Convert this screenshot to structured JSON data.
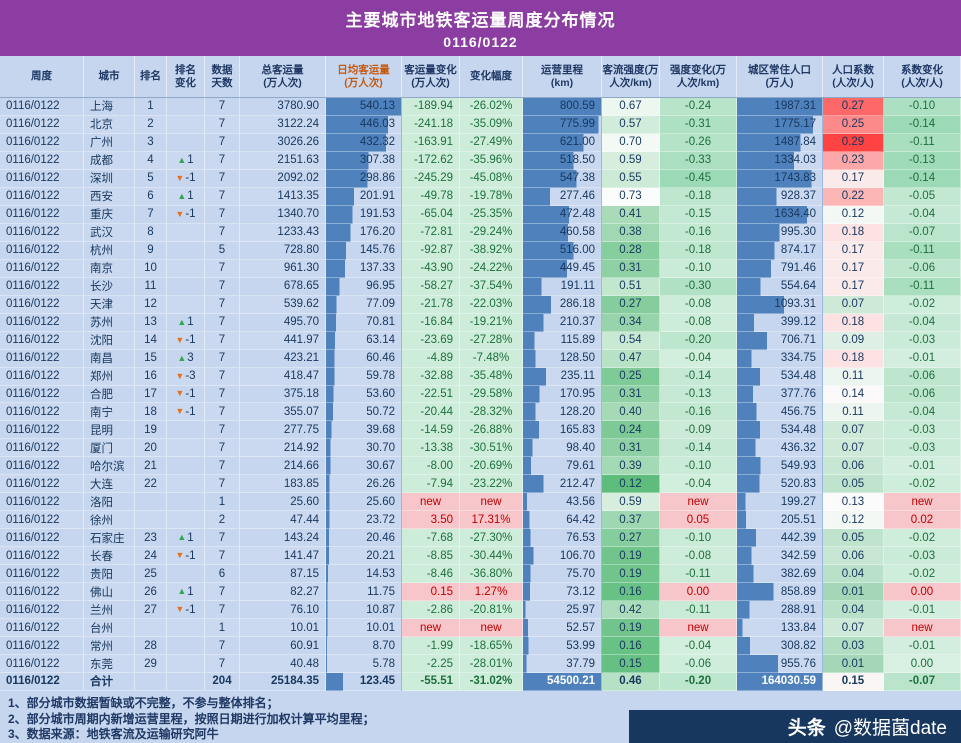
{
  "title": "主要城市地铁客运量周度分布情况",
  "subtitle": "0116/0122",
  "notes": [
    "1、部分城市数据暂缺或不完整，不参与整体排名；",
    "2、部分城市周期内新增运营里程，按照日期进行加权计算平均里程；",
    "3、数据来源：地铁客流及运输研究阿牛"
  ],
  "watermark": {
    "brand": "头条",
    "handle": "@数据菌date"
  },
  "colors": {
    "title_bg": "#8B3DA1",
    "page_bg": "#C5D6EE",
    "header_text": "#1F3864",
    "header_accent": "#C55A11",
    "body_text": "#17375E",
    "bar_blue": "#4F81BD",
    "green_bg": "#CDEDDA",
    "green_text": "#1D6F3C",
    "pink_bg": "#F6C6CA",
    "pink_text": "#C00000",
    "intensity_green": "#5EBD7D",
    "coef_red": "#FF4343",
    "coef_green": "#93D1AC",
    "up_arrow": "#2EA84F",
    "down_arrow": "#E8701A",
    "watermark_bg": "#17375E"
  },
  "chart_data": {
    "type": "table",
    "title": "主要城市地铁客运量周度分布情况",
    "period": "0116/0122",
    "columns": [
      "周度",
      "城市",
      "排名",
      "排名变化",
      "数据天数",
      "总客运量(万人次)",
      "日均客运量(万人次)",
      "客运量变化(万人次)",
      "变化幅度",
      "运营里程(km)",
      "客流强度(万人次/km)",
      "强度变化(万人次/km)",
      "城区常住人口(万人)",
      "人口系数(人次/人)",
      "系数变化(人次/人)"
    ],
    "header_lines": [
      [
        "周度"
      ],
      [
        "城市"
      ],
      [
        "排名"
      ],
      [
        "排名",
        "变化"
      ],
      [
        "数据",
        "天数"
      ],
      [
        "总客运量",
        "(万人次)"
      ],
      [
        "日均客运量",
        "(万人次)"
      ],
      [
        "客运量变化",
        "(万人次)"
      ],
      [
        "变化幅度"
      ],
      [
        "运营里程",
        "(km)"
      ],
      [
        "客流强度(万",
        "人次/km)"
      ],
      [
        "强度变化(万",
        "人次/km)"
      ],
      [
        "城区常住人口",
        "(万人)"
      ],
      [
        "人口系数",
        "(人次/人)"
      ],
      [
        "系数变化",
        "(人次/人)"
      ]
    ],
    "scales": {
      "daily_avg_bar_max": 540.13,
      "mileage_bar_max": 800.59,
      "population_bar_max": 1987.31,
      "intensity_range": [
        0.12,
        0.73
      ],
      "coefficient_min": 0.01,
      "coefficient_mid": 0.13,
      "coefficient_max": 0.29
    },
    "rows": [
      {
        "city": "上海",
        "rank": "1",
        "rc": "",
        "days": "7",
        "total": "3780.90",
        "avg": "540.13",
        "dvol": "-189.94",
        "dpct": "-26.02%",
        "km": "800.59",
        "int": "0.67",
        "dint": "-0.24",
        "pop": "1987.31",
        "coef": "0.27",
        "dcoef": "-0.10"
      },
      {
        "city": "北京",
        "rank": "2",
        "rc": "",
        "days": "7",
        "total": "3122.24",
        "avg": "446.03",
        "dvol": "-241.18",
        "dpct": "-35.09%",
        "km": "775.99",
        "int": "0.57",
        "dint": "-0.31",
        "pop": "1775.17",
        "coef": "0.25",
        "dcoef": "-0.14"
      },
      {
        "city": "广州",
        "rank": "3",
        "rc": "",
        "days": "7",
        "total": "3026.26",
        "avg": "432.32",
        "dvol": "-163.91",
        "dpct": "-27.49%",
        "km": "621.00",
        "int": "0.70",
        "dint": "-0.26",
        "pop": "1487.84",
        "coef": "0.29",
        "dcoef": "-0.11"
      },
      {
        "city": "成都",
        "rank": "4",
        "rc": "▲1",
        "days": "7",
        "total": "2151.63",
        "avg": "307.38",
        "dvol": "-172.62",
        "dpct": "-35.96%",
        "km": "518.50",
        "int": "0.59",
        "dint": "-0.33",
        "pop": "1334.03",
        "coef": "0.23",
        "dcoef": "-0.13"
      },
      {
        "city": "深圳",
        "rank": "5",
        "rc": "▼-1",
        "days": "7",
        "total": "2092.02",
        "avg": "298.86",
        "dvol": "-245.29",
        "dpct": "-45.08%",
        "km": "547.38",
        "int": "0.55",
        "dint": "-0.45",
        "pop": "1743.83",
        "coef": "0.17",
        "dcoef": "-0.14"
      },
      {
        "city": "西安",
        "rank": "6",
        "rc": "▲1",
        "days": "7",
        "total": "1413.35",
        "avg": "201.91",
        "dvol": "-49.78",
        "dpct": "-19.78%",
        "km": "277.46",
        "int": "0.73",
        "dint": "-0.18",
        "pop": "928.37",
        "coef": "0.22",
        "dcoef": "-0.05"
      },
      {
        "city": "重庆",
        "rank": "7",
        "rc": "▼-1",
        "days": "7",
        "total": "1340.70",
        "avg": "191.53",
        "dvol": "-65.04",
        "dpct": "-25.35%",
        "km": "472.48",
        "int": "0.41",
        "dint": "-0.15",
        "pop": "1634.40",
        "coef": "0.12",
        "dcoef": "-0.04"
      },
      {
        "city": "武汉",
        "rank": "8",
        "rc": "",
        "days": "7",
        "total": "1233.43",
        "avg": "176.20",
        "dvol": "-72.81",
        "dpct": "-29.24%",
        "km": "460.58",
        "int": "0.38",
        "dint": "-0.16",
        "pop": "995.30",
        "coef": "0.18",
        "dcoef": "-0.07"
      },
      {
        "city": "杭州",
        "rank": "9",
        "rc": "",
        "days": "5",
        "total": "728.80",
        "avg": "145.76",
        "dvol": "-92.87",
        "dpct": "-38.92%",
        "km": "516.00",
        "int": "0.28",
        "dint": "-0.18",
        "pop": "874.17",
        "coef": "0.17",
        "dcoef": "-0.11"
      },
      {
        "city": "南京",
        "rank": "10",
        "rc": "",
        "days": "7",
        "total": "961.30",
        "avg": "137.33",
        "dvol": "-43.90",
        "dpct": "-24.22%",
        "km": "449.45",
        "int": "0.31",
        "dint": "-0.10",
        "pop": "791.46",
        "coef": "0.17",
        "dcoef": "-0.06"
      },
      {
        "city": "长沙",
        "rank": "11",
        "rc": "",
        "days": "7",
        "total": "678.65",
        "avg": "96.95",
        "dvol": "-58.27",
        "dpct": "-37.54%",
        "km": "191.11",
        "int": "0.51",
        "dint": "-0.30",
        "pop": "554.64",
        "coef": "0.17",
        "dcoef": "-0.11"
      },
      {
        "city": "天津",
        "rank": "12",
        "rc": "",
        "days": "7",
        "total": "539.62",
        "avg": "77.09",
        "dvol": "-21.78",
        "dpct": "-22.03%",
        "km": "286.18",
        "int": "0.27",
        "dint": "-0.08",
        "pop": "1093.31",
        "coef": "0.07",
        "dcoef": "-0.02"
      },
      {
        "city": "苏州",
        "rank": "13",
        "rc": "▲1",
        "days": "7",
        "total": "495.70",
        "avg": "70.81",
        "dvol": "-16.84",
        "dpct": "-19.21%",
        "km": "210.37",
        "int": "0.34",
        "dint": "-0.08",
        "pop": "399.12",
        "coef": "0.18",
        "dcoef": "-0.04"
      },
      {
        "city": "沈阳",
        "rank": "14",
        "rc": "▼-1",
        "days": "7",
        "total": "441.97",
        "avg": "63.14",
        "dvol": "-23.69",
        "dpct": "-27.28%",
        "km": "115.89",
        "int": "0.54",
        "dint": "-0.20",
        "pop": "706.71",
        "coef": "0.09",
        "dcoef": "-0.03"
      },
      {
        "city": "南昌",
        "rank": "15",
        "rc": "▲3",
        "days": "7",
        "total": "423.21",
        "avg": "60.46",
        "dvol": "-4.89",
        "dpct": "-7.48%",
        "km": "128.50",
        "int": "0.47",
        "dint": "-0.04",
        "pop": "334.75",
        "coef": "0.18",
        "dcoef": "-0.01"
      },
      {
        "city": "郑州",
        "rank": "16",
        "rc": "▼-3",
        "days": "7",
        "total": "418.47",
        "avg": "59.78",
        "dvol": "-32.88",
        "dpct": "-35.48%",
        "km": "235.11",
        "int": "0.25",
        "dint": "-0.14",
        "pop": "534.48",
        "coef": "0.11",
        "dcoef": "-0.06"
      },
      {
        "city": "合肥",
        "rank": "17",
        "rc": "▼-1",
        "days": "7",
        "total": "375.18",
        "avg": "53.60",
        "dvol": "-22.51",
        "dpct": "-29.58%",
        "km": "170.95",
        "int": "0.31",
        "dint": "-0.13",
        "pop": "377.76",
        "coef": "0.14",
        "dcoef": "-0.06"
      },
      {
        "city": "南宁",
        "rank": "18",
        "rc": "▼-1",
        "days": "7",
        "total": "355.07",
        "avg": "50.72",
        "dvol": "-20.44",
        "dpct": "-28.32%",
        "km": "128.20",
        "int": "0.40",
        "dint": "-0.16",
        "pop": "456.75",
        "coef": "0.11",
        "dcoef": "-0.04"
      },
      {
        "city": "昆明",
        "rank": "19",
        "rc": "",
        "days": "7",
        "total": "277.75",
        "avg": "39.68",
        "dvol": "-14.59",
        "dpct": "-26.88%",
        "km": "165.83",
        "int": "0.24",
        "dint": "-0.09",
        "pop": "534.48",
        "coef": "0.07",
        "dcoef": "-0.03"
      },
      {
        "city": "厦门",
        "rank": "20",
        "rc": "",
        "days": "7",
        "total": "214.92",
        "avg": "30.70",
        "dvol": "-13.38",
        "dpct": "-30.51%",
        "km": "98.40",
        "int": "0.31",
        "dint": "-0.14",
        "pop": "436.32",
        "coef": "0.07",
        "dcoef": "-0.03"
      },
      {
        "city": "哈尔滨",
        "rank": "21",
        "rc": "",
        "days": "7",
        "total": "214.66",
        "avg": "30.67",
        "dvol": "-8.00",
        "dpct": "-20.69%",
        "km": "79.61",
        "int": "0.39",
        "dint": "-0.10",
        "pop": "549.93",
        "coef": "0.06",
        "dcoef": "-0.01"
      },
      {
        "city": "大连",
        "rank": "22",
        "rc": "",
        "days": "7",
        "total": "183.85",
        "avg": "26.26",
        "dvol": "-7.94",
        "dpct": "-23.22%",
        "km": "212.47",
        "int": "0.12",
        "dint": "-0.04",
        "pop": "520.83",
        "coef": "0.05",
        "dcoef": "-0.02"
      },
      {
        "city": "洛阳",
        "rank": "",
        "rc": "",
        "days": "1",
        "total": "25.60",
        "avg": "25.60",
        "dvol": "new",
        "dpct": "new",
        "km": "43.56",
        "int": "0.59",
        "dint": "new",
        "pop": "199.27",
        "coef": "0.13",
        "dcoef": "new"
      },
      {
        "city": "徐州",
        "rank": "",
        "rc": "",
        "days": "2",
        "total": "47.44",
        "avg": "23.72",
        "dvol": "3.50",
        "dpct": "17.31%",
        "km": "64.42",
        "int": "0.37",
        "dint": "0.05",
        "pop": "205.51",
        "coef": "0.12",
        "dcoef": "0.02"
      },
      {
        "city": "石家庄",
        "rank": "23",
        "rc": "▲1",
        "days": "7",
        "total": "143.24",
        "avg": "20.46",
        "dvol": "-7.68",
        "dpct": "-27.30%",
        "km": "76.53",
        "int": "0.27",
        "dint": "-0.10",
        "pop": "442.39",
        "coef": "0.05",
        "dcoef": "-0.02"
      },
      {
        "city": "长春",
        "rank": "24",
        "rc": "▼-1",
        "days": "7",
        "total": "141.47",
        "avg": "20.21",
        "dvol": "-8.85",
        "dpct": "-30.44%",
        "km": "106.70",
        "int": "0.19",
        "dint": "-0.08",
        "pop": "342.59",
        "coef": "0.06",
        "dcoef": "-0.03"
      },
      {
        "city": "贵阳",
        "rank": "25",
        "rc": "",
        "days": "6",
        "total": "87.15",
        "avg": "14.53",
        "dvol": "-8.46",
        "dpct": "-36.80%",
        "km": "75.70",
        "int": "0.19",
        "dint": "-0.11",
        "pop": "382.69",
        "coef": "0.04",
        "dcoef": "-0.02"
      },
      {
        "city": "佛山",
        "rank": "26",
        "rc": "▲1",
        "days": "7",
        "total": "82.27",
        "avg": "11.75",
        "dvol": "0.15",
        "dpct": "1.27%",
        "km": "73.12",
        "int": "0.16",
        "dint": "0.00",
        "pop": "858.89",
        "coef": "0.01",
        "dcoef": "0.00",
        "pos": true
      },
      {
        "city": "兰州",
        "rank": "27",
        "rc": "▼-1",
        "days": "7",
        "total": "76.10",
        "avg": "10.87",
        "dvol": "-2.86",
        "dpct": "-20.81%",
        "km": "25.97",
        "int": "0.42",
        "dint": "-0.11",
        "pop": "288.91",
        "coef": "0.04",
        "dcoef": "-0.01"
      },
      {
        "city": "台州",
        "rank": "",
        "rc": "",
        "days": "1",
        "total": "10.01",
        "avg": "10.01",
        "dvol": "new",
        "dpct": "new",
        "km": "52.57",
        "int": "0.19",
        "dint": "new",
        "pop": "133.84",
        "coef": "0.07",
        "dcoef": "new"
      },
      {
        "city": "常州",
        "rank": "28",
        "rc": "",
        "days": "7",
        "total": "60.91",
        "avg": "8.70",
        "dvol": "-1.99",
        "dpct": "-18.65%",
        "km": "53.99",
        "int": "0.16",
        "dint": "-0.04",
        "pop": "308.82",
        "coef": "0.03",
        "dcoef": "-0.01"
      },
      {
        "city": "东莞",
        "rank": "29",
        "rc": "",
        "days": "7",
        "total": "40.48",
        "avg": "5.78",
        "dvol": "-2.25",
        "dpct": "-28.01%",
        "km": "37.79",
        "int": "0.15",
        "dint": "-0.06",
        "pop": "955.76",
        "coef": "0.01",
        "dcoef": "0.00"
      },
      {
        "city": "合计",
        "rank": "",
        "rc": "",
        "days": "204",
        "total": "25184.35",
        "avg": "123.45",
        "dvol": "-55.51",
        "dpct": "-31.02%",
        "km": "54500.21",
        "int": "0.46",
        "dint": "-0.20",
        "pop": "164030.59",
        "coef": "0.15",
        "dcoef": "-0.07",
        "is_total": true
      }
    ]
  }
}
